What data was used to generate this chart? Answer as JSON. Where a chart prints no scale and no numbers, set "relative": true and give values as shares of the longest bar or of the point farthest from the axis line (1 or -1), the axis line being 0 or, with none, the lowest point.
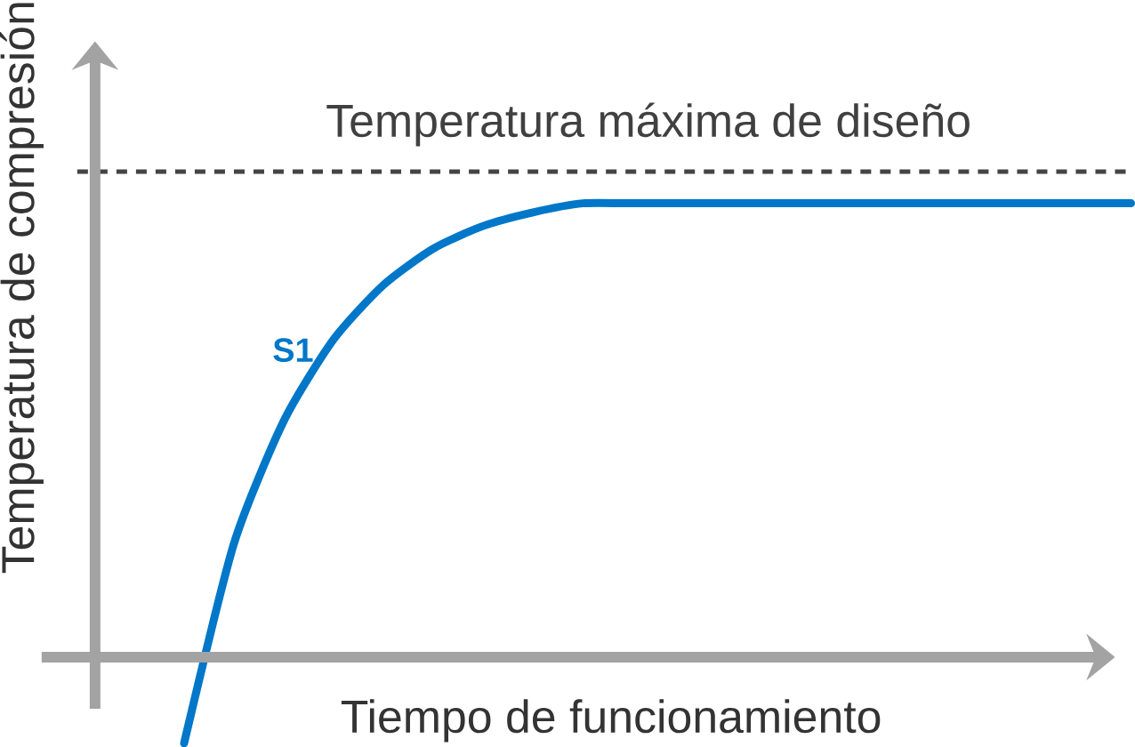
{
  "chart_data": {
    "type": "line",
    "relative": true,
    "xlabel": "Tiempo de funcionamiento",
    "ylabel": "Temperatura de compresión",
    "categories": [
      null,
      null,
      null,
      null,
      null,
      null,
      null,
      null,
      null,
      null,
      null,
      null,
      null,
      null,
      null,
      null,
      null,
      null,
      null,
      null
    ],
    "series": [
      {
        "name": "S1",
        "color": "#0077c8",
        "values": [
          -0.19,
          0.25,
          0.52,
          0.7,
          0.82,
          0.9,
          0.95,
          0.98,
          1.0,
          1,
          1,
          1,
          1,
          1,
          1,
          1,
          1,
          1,
          1,
          1
        ]
      }
    ],
    "ref_lines": [
      {
        "axis": "y",
        "value": 1.07,
        "label": "Temperatura máxima de diseño",
        "color": "#444444",
        "line_style": "dashed"
      }
    ]
  }
}
